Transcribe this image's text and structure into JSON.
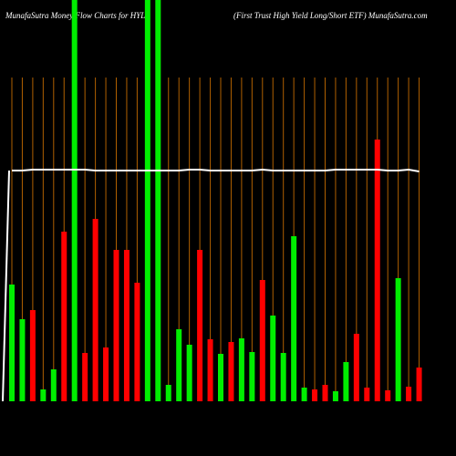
{
  "chart_data": {
    "type": "bar",
    "title": "MunafaSutra  Money Flow  Charts for HYLS",
    "subtitle": "(First Trust High Yield Long/Short ETF) MunafaSutra.com",
    "categories": [
      null,
      null,
      null,
      null,
      null,
      null,
      null,
      null,
      null,
      null,
      null,
      null,
      null,
      null,
      null,
      null,
      null,
      null,
      null,
      null,
      null,
      null,
      null,
      null,
      null,
      null,
      null,
      null,
      null,
      null,
      null,
      null,
      null,
      null,
      null,
      null,
      null,
      null,
      null,
      null
    ],
    "values": [
      128,
      90,
      100,
      13,
      35,
      186,
      440,
      53,
      200,
      59,
      166,
      166,
      130,
      440,
      440,
      18,
      79,
      62,
      166,
      68,
      52,
      65,
      69,
      54,
      133,
      94,
      53,
      181,
      15,
      13,
      18,
      11,
      43,
      74,
      15,
      287,
      12,
      135,
      16,
      37
    ],
    "colors": [
      "#00ee00",
      "#00ee00",
      "#ff0000",
      "#00ee00",
      "#00ee00",
      "#ff0000",
      "#00ee00",
      "#ff0000",
      "#ff0000",
      "#ff0000",
      "#ff0000",
      "#ff0000",
      "#ff0000",
      "#00ee00",
      "#00ee00",
      "#00ee00",
      "#00ee00",
      "#00ee00",
      "#ff0000",
      "#ff0000",
      "#00ee00",
      "#ff0000",
      "#00ee00",
      "#00ee00",
      "#ff0000",
      "#00ee00",
      "#00ee00",
      "#00ee00",
      "#00ee00",
      "#ff0000",
      "#ff0000",
      "#00ee00",
      "#00ee00",
      "#ff0000",
      "#ff0000",
      "#ff0000",
      "#ff0000",
      "#00ee00",
      "#ff0000",
      "#ff0000"
    ],
    "line": {
      "color": "#ffffff",
      "values": [
        253,
        253,
        254,
        254,
        254,
        254,
        254,
        254,
        253,
        253,
        253,
        253,
        253,
        253,
        253,
        253,
        253,
        254,
        254,
        253,
        253,
        253,
        253,
        253,
        254,
        253,
        253,
        253,
        253,
        253,
        253,
        254,
        254,
        254,
        254,
        254,
        253,
        253,
        254,
        252
      ]
    },
    "ylim": [
      0,
      440
    ]
  }
}
